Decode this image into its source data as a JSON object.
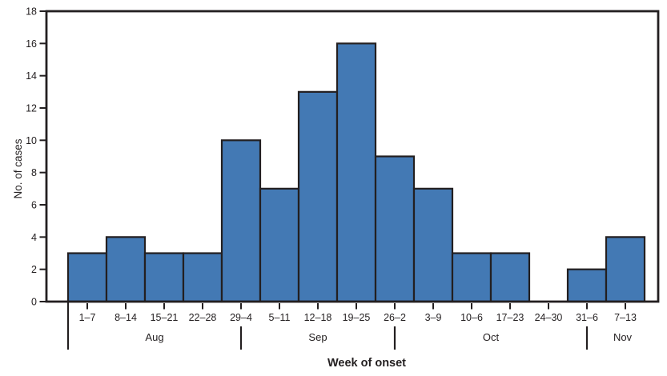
{
  "chart_data": {
    "type": "bar",
    "title": "",
    "xlabel": "Week of onset",
    "ylabel": "No. of cases",
    "categories": [
      "1–7",
      "8–14",
      "15–21",
      "22–28",
      "29–4",
      "5–11",
      "12–18",
      "19–25",
      "26–2",
      "3–9",
      "10–6",
      "17–23",
      "24–30",
      "31–6",
      "7–13"
    ],
    "values": [
      3,
      4,
      3,
      3,
      10,
      7,
      13,
      16,
      9,
      7,
      3,
      3,
      0,
      2,
      4
    ],
    "y_ticks": [
      0,
      2,
      4,
      6,
      8,
      10,
      12,
      14,
      16,
      18
    ],
    "ylim": [
      0,
      18
    ],
    "grid": false,
    "legend": null,
    "month_labels": [
      "Aug",
      "Sep",
      "Oct",
      "Nov"
    ],
    "month_separators": [
      {
        "position": "left_edge_of",
        "category": "1–7",
        "extends_from_axis": true
      },
      {
        "position": "center_of",
        "category": "29–4",
        "extends_from_axis": false
      },
      {
        "position": "center_of",
        "category": "26–2",
        "extends_from_axis": false
      },
      {
        "position": "center_of",
        "category": "31–6",
        "extends_from_axis": false
      }
    ],
    "colors": {
      "bar_fill": "#4379B4",
      "bar_border": "#231F20",
      "axis": "#231F20",
      "text": "#231F20"
    }
  }
}
